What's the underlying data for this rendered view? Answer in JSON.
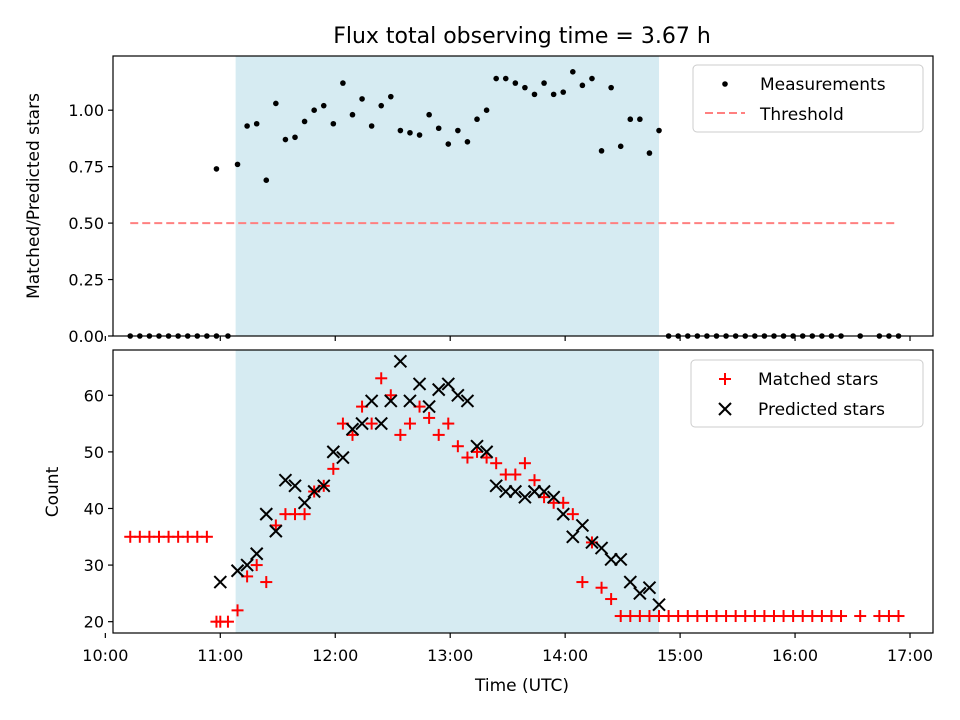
{
  "chart_data": [
    {
      "type": "scatter",
      "title": "Flux total observing time = 3.67 h",
      "xlabel": "",
      "ylabel": "Matched/Predicted stars",
      "xlim": [
        "10:04",
        "17:12"
      ],
      "ylim": [
        0,
        1.24
      ],
      "yticks": [
        0.0,
        0.25,
        0.5,
        0.75,
        1.0
      ],
      "ytick_labels": [
        "0.00",
        "0.25",
        "0.50",
        "0.75",
        "1.00"
      ],
      "grid": false,
      "legend": "top-right",
      "shaded_region": {
        "x_start": "11:08",
        "x_end": "14:49",
        "color": "#add8e6"
      },
      "series": [
        {
          "name": "Measurements",
          "kind": "points",
          "color": "#000000",
          "x": [
            "10:13",
            "10:18",
            "10:23",
            "10:28",
            "10:33",
            "10:38",
            "10:43",
            "10:48",
            "10:53",
            "10:58",
            "11:04",
            "10:58",
            "11:09",
            "11:14",
            "11:19",
            "11:24",
            "11:29",
            "11:34",
            "11:39",
            "11:44",
            "11:49",
            "11:54",
            "11:59",
            "12:04",
            "12:09",
            "12:14",
            "12:19",
            "12:24",
            "12:29",
            "12:34",
            "12:39",
            "12:44",
            "12:49",
            "12:54",
            "12:59",
            "13:04",
            "13:09",
            "13:14",
            "13:19",
            "13:24",
            "13:29",
            "13:34",
            "13:39",
            "13:44",
            "13:49",
            "13:54",
            "13:59",
            "14:04",
            "14:09",
            "14:14",
            "14:19",
            "14:24",
            "14:29",
            "14:34",
            "14:39",
            "14:44",
            "14:49",
            "14:54",
            "14:59",
            "15:04",
            "15:09",
            "15:14",
            "15:19",
            "15:24",
            "15:29",
            "15:34",
            "15:39",
            "15:44",
            "15:49",
            "15:54",
            "15:59",
            "16:04",
            "16:09",
            "16:14",
            "16:19",
            "16:24",
            "16:34",
            "16:44",
            "16:49",
            "16:54"
          ],
          "y": [
            0,
            0,
            0,
            0,
            0,
            0,
            0,
            0,
            0,
            0,
            0,
            0.74,
            0.76,
            0.93,
            0.94,
            0.69,
            1.03,
            0.87,
            0.88,
            0.95,
            1.0,
            1.02,
            0.94,
            1.12,
            0.98,
            1.05,
            0.93,
            1.02,
            1.06,
            0.91,
            0.9,
            0.89,
            0.98,
            0.92,
            0.85,
            0.91,
            0.86,
            0.96,
            1.0,
            1.14,
            1.14,
            1.12,
            1.1,
            1.07,
            1.12,
            1.07,
            1.08,
            1.17,
            1.11,
            1.14,
            0.82,
            1.1,
            0.84,
            0.96,
            0.96,
            0.81,
            0.91,
            0,
            0,
            0,
            0,
            0,
            0,
            0,
            0,
            0,
            0,
            0,
            0,
            0,
            0,
            0,
            0,
            0,
            0,
            0,
            0,
            0,
            0,
            0
          ]
        },
        {
          "name": "Threshold",
          "kind": "dashed-line",
          "color": "#ff8080",
          "x": [
            "10:13",
            "16:53"
          ],
          "y": [
            0.5,
            0.5
          ]
        }
      ]
    },
    {
      "type": "scatter",
      "title": "",
      "xlabel": "Time (UTC)",
      "ylabel": "Count",
      "xlim": [
        "10:04",
        "17:12"
      ],
      "ylim": [
        18,
        68
      ],
      "xticks": [
        "10:00",
        "11:00",
        "12:00",
        "13:00",
        "14:00",
        "15:00",
        "16:00",
        "17:00"
      ],
      "yticks": [
        20,
        30,
        40,
        50,
        60
      ],
      "grid": false,
      "legend": "top-right",
      "shaded_region": {
        "x_start": "11:08",
        "x_end": "14:49",
        "color": "#add8e6"
      },
      "series": [
        {
          "name": "Matched stars",
          "marker": "plus",
          "color": "#ff0000",
          "x": [
            "10:13",
            "10:18",
            "10:23",
            "10:28",
            "10:33",
            "10:38",
            "10:43",
            "10:48",
            "10:53",
            "10:58",
            "11:00",
            "11:04",
            "11:09",
            "11:14",
            "11:19",
            "11:24",
            "11:29",
            "11:34",
            "11:39",
            "11:44",
            "11:49",
            "11:54",
            "11:59",
            "12:04",
            "12:09",
            "12:14",
            "12:19",
            "12:24",
            "12:29",
            "12:34",
            "12:39",
            "12:44",
            "12:49",
            "12:54",
            "12:59",
            "13:04",
            "13:09",
            "13:14",
            "13:19",
            "13:24",
            "13:29",
            "13:34",
            "13:39",
            "13:44",
            "13:49",
            "13:54",
            "13:59",
            "14:04",
            "14:09",
            "14:14",
            "14:19",
            "14:24",
            "14:29",
            "14:34",
            "14:39",
            "14:44",
            "14:49",
            "14:54",
            "14:59",
            "15:04",
            "15:09",
            "15:14",
            "15:19",
            "15:24",
            "15:29",
            "15:34",
            "15:39",
            "15:44",
            "15:49",
            "15:54",
            "15:59",
            "16:04",
            "16:09",
            "16:14",
            "16:19",
            "16:24",
            "16:34",
            "16:44",
            "16:49",
            "16:54"
          ],
          "y": [
            35,
            35,
            35,
            35,
            35,
            35,
            35,
            35,
            35,
            20,
            20,
            20,
            22,
            28,
            30,
            27,
            37,
            39,
            39,
            39,
            43,
            44,
            47,
            55,
            53,
            58,
            55,
            63,
            60,
            53,
            55,
            58,
            56,
            53,
            55,
            51,
            49,
            50,
            49,
            48,
            46,
            46,
            48,
            45,
            42,
            41,
            41,
            39,
            27,
            34,
            26,
            24,
            21,
            21,
            21,
            21,
            21,
            21,
            21,
            21,
            21,
            21,
            21,
            21,
            21,
            21,
            21,
            21,
            21,
            21,
            21,
            21,
            21,
            21,
            21,
            21,
            21,
            21,
            21,
            21
          ]
        },
        {
          "name": "Predicted stars",
          "marker": "x",
          "color": "#000000",
          "x": [
            "11:00",
            "11:09",
            "11:14",
            "11:19",
            "11:24",
            "11:29",
            "11:34",
            "11:39",
            "11:44",
            "11:49",
            "11:54",
            "11:59",
            "12:04",
            "12:09",
            "12:14",
            "12:19",
            "12:24",
            "12:29",
            "12:34",
            "12:39",
            "12:44",
            "12:49",
            "12:54",
            "12:59",
            "13:04",
            "13:09",
            "13:14",
            "13:19",
            "13:24",
            "13:29",
            "13:34",
            "13:39",
            "13:44",
            "13:49",
            "13:54",
            "13:59",
            "14:04",
            "14:09",
            "14:14",
            "14:19",
            "14:24",
            "14:29",
            "14:34",
            "14:39",
            "14:44",
            "14:49"
          ],
          "y": [
            27,
            29,
            30,
            32,
            39,
            36,
            45,
            44,
            41,
            43,
            44,
            50,
            49,
            54,
            55,
            59,
            55,
            59,
            66,
            59,
            62,
            58,
            61,
            62,
            60,
            59,
            51,
            50,
            44,
            43,
            43,
            42,
            43,
            43,
            42,
            39,
            35,
            37,
            34,
            33,
            31,
            31,
            27,
            25,
            26,
            23
          ]
        }
      ]
    }
  ]
}
